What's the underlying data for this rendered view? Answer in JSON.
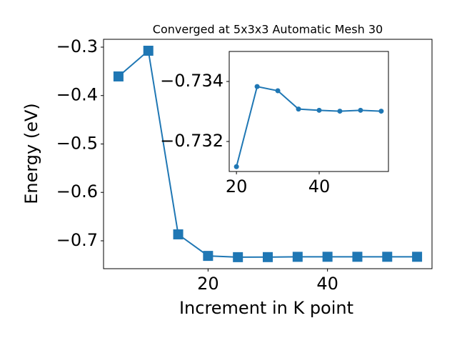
{
  "chart_data": [
    {
      "type": "line",
      "title": "Converged at 5x3x3 Automatic Mesh 30",
      "x_label": "Increment in K point",
      "y_label": "Energy (eV)",
      "x": [
        5,
        10,
        15,
        20,
        25,
        30,
        35,
        40,
        45,
        50,
        55
      ],
      "series": [
        {
          "color": "#1f77b4",
          "marker": "square",
          "values": [
            -0.3605,
            -0.3074,
            -0.6867,
            -0.7312,
            -0.7338,
            -0.7337,
            -0.7331,
            -0.733,
            -0.733,
            -0.733,
            -0.733
          ]
        }
      ],
      "xlim": [
        2.5,
        57.5
      ],
      "ylim": [
        -0.7576,
        -0.2838
      ],
      "xticks": [
        20,
        40
      ],
      "yticks": [
        {
          "value": -0.7,
          "label": "−0.7"
        },
        {
          "value": -0.6,
          "label": "−0.6"
        },
        {
          "value": -0.5,
          "label": "−0.5"
        },
        {
          "value": -0.4,
          "label": "−0.4"
        },
        {
          "value": -0.3,
          "label": "−0.3"
        }
      ]
    },
    {
      "type": "line",
      "x": [
        20,
        25,
        30,
        35,
        40,
        45,
        50,
        55
      ],
      "series": [
        {
          "color": "#1f77b4",
          "marker": "circle",
          "values": [
            -0.73116,
            -0.73383,
            -0.73369,
            -0.73308,
            -0.73304,
            -0.73301,
            -0.73304,
            -0.73301
          ]
        }
      ],
      "xlim": [
        18.25,
        56.75
      ],
      "ylim": [
        -0.731,
        -0.735
      ],
      "xticks": [
        20,
        40
      ],
      "yticks": [
        {
          "value": -0.734,
          "label": "−0.734"
        },
        {
          "value": -0.732,
          "label": "−0.732"
        }
      ]
    }
  ]
}
